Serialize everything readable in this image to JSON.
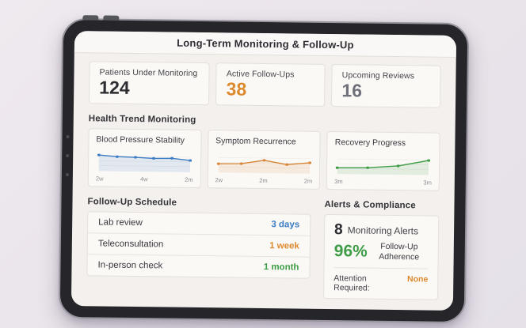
{
  "page": {
    "title": "Long-Term Monitoring & Follow-Up"
  },
  "colors": {
    "dark": "#2d2d32",
    "gray": "#70707a",
    "blue": "#3b7cc4",
    "orange": "#dd8a2f",
    "green": "#3f9c47"
  },
  "stats": [
    {
      "label": "Patients Under Monitoring",
      "value": "124",
      "color": "#2d2d32"
    },
    {
      "label": "Active Follow-Ups",
      "value": "38",
      "color": "#dd8a2f"
    },
    {
      "label": "Upcoming Reviews",
      "value": "16",
      "color": "#70707a"
    }
  ],
  "sections": {
    "trends": "Health Trend Monitoring",
    "schedule": "Follow-Up Schedule",
    "alerts": "Alerts & Compliance"
  },
  "chart_data": [
    {
      "type": "line",
      "title": "Blood Pressure Stability",
      "x_labels": [
        "2w",
        "4w",
        "2m"
      ],
      "values": [
        84,
        76,
        74,
        69,
        71,
        60
      ],
      "ylim": [
        0,
        100
      ],
      "color": "#3b7cc4",
      "area_fill": true,
      "grid": true
    },
    {
      "type": "line",
      "title": "Symptom Recurrence",
      "x_labels": [
        "2w",
        "2m",
        "2m"
      ],
      "values": [
        44,
        46,
        66,
        44,
        55
      ],
      "ylim": [
        0,
        100
      ],
      "color": "#d6873a",
      "area_fill": true,
      "grid": true
    },
    {
      "type": "line",
      "title": "Recovery Progress",
      "x_labels": [
        "3m",
        "3m"
      ],
      "values": [
        30,
        32,
        44,
        76
      ],
      "ylim": [
        0,
        100
      ],
      "color": "#3f9c47",
      "area_fill": true,
      "grid": true
    }
  ],
  "schedule": {
    "rows": [
      {
        "label": "Lab review",
        "value": "3 days",
        "color": "#3b7cc4"
      },
      {
        "label": "Teleconsultation",
        "value": "1 week",
        "color": "#dd8a2f"
      },
      {
        "label": "In-person check",
        "value": "1 month",
        "color": "#3f9c47"
      }
    ]
  },
  "alerts": {
    "count": "8",
    "count_label": "Monitoring Alerts",
    "adherence_value": "96%",
    "adherence_label": "Follow-Up Adherence",
    "adherence_color": "#3f9c47",
    "attention_label": "Attention Required:",
    "attention_value": "None",
    "attention_color": "#dd8a2f"
  }
}
